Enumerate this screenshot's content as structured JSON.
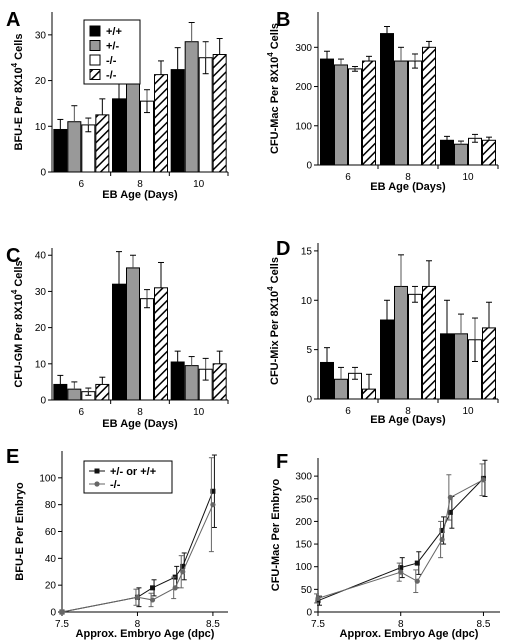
{
  "chart_data": [
    {
      "panel": "A",
      "type": "bar",
      "categories": [
        "6",
        "8",
        "10"
      ],
      "xlabel": "EB Age (Days)",
      "ylabel": "BFU-E Per 8X10",
      "ylabel_sup": "4",
      "ylabel_tail": " Cells",
      "ylim": [
        0,
        35
      ],
      "yticks": [
        0,
        10,
        20,
        30
      ],
      "legend": [
        "+/+",
        "+/-",
        "-/-",
        "-/-"
      ],
      "series": [
        {
          "name": "+/+",
          "style": "black",
          "values": [
            9.3,
            16.0,
            22.4
          ],
          "errors": [
            2.2,
            6.0,
            4.8
          ]
        },
        {
          "name": "+/-",
          "style": "gray",
          "values": [
            11.0,
            21.5,
            28.5
          ],
          "errors": [
            3.5,
            4.8,
            4.2
          ]
        },
        {
          "name": "-/-",
          "style": "white",
          "values": [
            10.3,
            15.5,
            25.0
          ],
          "errors": [
            1.5,
            2.5,
            3.5
          ]
        },
        {
          "name": "-/-",
          "style": "hatch",
          "values": [
            12.5,
            21.3,
            25.7
          ],
          "errors": [
            3.5,
            3.0,
            3.5
          ]
        }
      ]
    },
    {
      "panel": "B",
      "type": "bar",
      "categories": [
        "6",
        "8",
        "10"
      ],
      "xlabel": "EB Age (Days)",
      "ylabel": "CFU-Mac Per 8X10",
      "ylabel_sup": "4",
      "ylabel_tail": " Cells",
      "ylim": [
        0,
        390
      ],
      "yticks": [
        0,
        100,
        200,
        300
      ],
      "series": [
        {
          "name": "+/+",
          "style": "black",
          "values": [
            270,
            335,
            63
          ],
          "errors": [
            20,
            18,
            10
          ]
        },
        {
          "name": "+/-",
          "style": "gray",
          "values": [
            255,
            265,
            53
          ],
          "errors": [
            15,
            35,
            8
          ]
        },
        {
          "name": "-/-",
          "style": "white",
          "values": [
            245,
            265,
            68
          ],
          "errors": [
            6,
            18,
            10
          ]
        },
        {
          "name": "-/-",
          "style": "hatch",
          "values": [
            265,
            300,
            63
          ],
          "errors": [
            12,
            15,
            8
          ]
        }
      ]
    },
    {
      "panel": "C",
      "type": "bar",
      "categories": [
        "6",
        "8",
        "10"
      ],
      "xlabel": "EB Age (Days)",
      "ylabel": "CFU-GM Per 8X10",
      "ylabel_sup": "4",
      "ylabel_tail": " Cells",
      "ylim": [
        0,
        42
      ],
      "yticks": [
        0,
        10,
        20,
        30,
        40
      ],
      "series": [
        {
          "name": "+/+",
          "style": "black",
          "values": [
            4.3,
            32,
            10.5
          ],
          "errors": [
            2.5,
            9,
            3
          ]
        },
        {
          "name": "+/-",
          "style": "gray",
          "values": [
            3.0,
            36.5,
            9.5
          ],
          "errors": [
            2,
            3.5,
            2.5
          ]
        },
        {
          "name": "-/-",
          "style": "white",
          "values": [
            2.3,
            28,
            8.5
          ],
          "errors": [
            1,
            2.5,
            3
          ]
        },
        {
          "name": "-/-",
          "style": "hatch",
          "values": [
            4.3,
            31,
            10
          ],
          "errors": [
            2,
            7,
            3.5
          ]
        }
      ]
    },
    {
      "panel": "D",
      "type": "bar",
      "categories": [
        "6",
        "8",
        "10"
      ],
      "xlabel": "EB Age (Days)",
      "ylabel": "CFU-Mix Per 8X10",
      "ylabel_sup": "4",
      "ylabel_tail": " Cells",
      "ylim": [
        0,
        15.8
      ],
      "yticks": [
        0,
        5,
        10,
        15
      ],
      "series": [
        {
          "name": "+/+",
          "style": "black",
          "values": [
            3.7,
            8.0,
            6.6
          ],
          "errors": [
            1.5,
            2.0,
            3.4
          ]
        },
        {
          "name": "+/-",
          "style": "gray",
          "values": [
            2.0,
            11.4,
            6.6
          ],
          "errors": [
            1.2,
            3.2,
            2.0
          ]
        },
        {
          "name": "-/-",
          "style": "white",
          "values": [
            2.6,
            10.6,
            6.0
          ],
          "errors": [
            0.6,
            0.8,
            2.2
          ]
        },
        {
          "name": "-/-",
          "style": "hatch",
          "values": [
            1.0,
            11.4,
            7.2
          ],
          "errors": [
            1.5,
            2.6,
            2.6
          ]
        }
      ]
    },
    {
      "panel": "E",
      "type": "line",
      "xlabel": "Approx. Embryo Age (dpc)",
      "ylabel": "BFU-E Per Embryo",
      "xlim": [
        7.5,
        8.6
      ],
      "xticks": [
        7.5,
        8,
        8.5
      ],
      "ylim": [
        0,
        120
      ],
      "yticks": [
        0,
        20,
        40,
        60,
        80,
        100
      ],
      "legend": [
        "+/- or +/+",
        "-/-"
      ],
      "series": [
        {
          "name": "+/- or +/+",
          "marker": "square",
          "x": [
            7.5,
            8.0,
            8.1,
            8.25,
            8.3,
            8.5
          ],
          "y": [
            0,
            11,
            18,
            26,
            34,
            90
          ],
          "errors": [
            0,
            7,
            6,
            8,
            10,
            27
          ]
        },
        {
          "name": "-/-",
          "marker": "circle",
          "x": [
            7.5,
            8.0,
            8.1,
            8.25,
            8.3,
            8.5
          ],
          "y": [
            0,
            11,
            9,
            18,
            30,
            80
          ],
          "errors": [
            0,
            6,
            5,
            8,
            12,
            35
          ]
        }
      ]
    },
    {
      "panel": "F",
      "type": "line",
      "xlabel": "Approx. Embryo Age (dpc)",
      "ylabel": "CFU-Mac Per Embryo",
      "xlim": [
        7.5,
        8.6
      ],
      "xticks": [
        7.5,
        8,
        8.5
      ],
      "ylim": [
        0,
        340
      ],
      "yticks": [
        0,
        50,
        100,
        150,
        200,
        250,
        300
      ],
      "series": [
        {
          "name": "+/- or +/+",
          "marker": "square",
          "x": [
            7.5,
            8.0,
            8.1,
            8.25,
            8.3,
            8.5
          ],
          "y": [
            25,
            98,
            108,
            180,
            220,
            295
          ],
          "errors": [
            10,
            22,
            25,
            30,
            35,
            40
          ]
        },
        {
          "name": "-/-",
          "marker": "circle",
          "x": [
            7.5,
            8.0,
            8.1,
            8.25,
            8.3,
            8.5
          ],
          "y": [
            30,
            88,
            68,
            160,
            253,
            292
          ],
          "errors": [
            10,
            20,
            25,
            40,
            50,
            35
          ]
        }
      ]
    }
  ]
}
